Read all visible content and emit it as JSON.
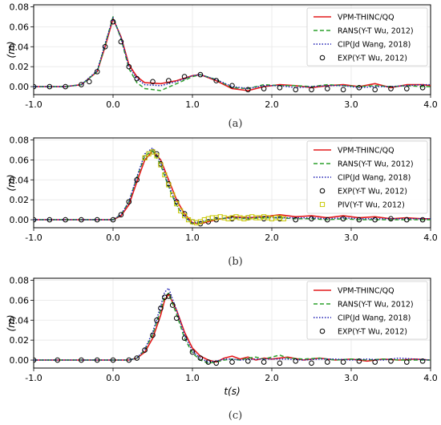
{
  "chart_data": [
    {
      "type": "line",
      "caption": "(a)",
      "ylabel": "(m)",
      "xlabel": "",
      "xlim": [
        -1.0,
        4.0
      ],
      "ylim": [
        -0.008,
        0.082
      ],
      "xticks": [
        "-1.0",
        "0.0",
        "1.0",
        "2.0",
        "3.0",
        "4.0"
      ],
      "yticks": [
        "0.00",
        "0.02",
        "0.04",
        "0.06",
        "0.08"
      ],
      "grid": true,
      "legend_position": "top-right",
      "series": [
        {
          "name": "VPM-THINC/QQ",
          "style": "solid",
          "color": "#e41a1c",
          "x": [
            -1.0,
            -0.6,
            -0.4,
            -0.2,
            -0.1,
            0.0,
            0.1,
            0.2,
            0.3,
            0.4,
            0.6,
            0.8,
            1.0,
            1.1,
            1.3,
            1.5,
            1.7,
            1.9,
            2.1,
            2.3,
            2.5,
            2.7,
            2.9,
            3.1,
            3.3,
            3.5,
            3.7,
            3.9,
            4.0
          ],
          "y": [
            0.0,
            0.0,
            0.002,
            0.015,
            0.04,
            0.068,
            0.05,
            0.022,
            0.01,
            0.004,
            0.003,
            0.006,
            0.011,
            0.012,
            0.006,
            -0.002,
            -0.004,
            0.0,
            0.002,
            0.001,
            -0.001,
            0.001,
            0.002,
            0.0,
            0.003,
            -0.001,
            0.002,
            0.002,
            0.001
          ]
        },
        {
          "name": "RANS(Y-T Wu, 2012)",
          "style": "dashed",
          "color": "#2ca02c",
          "x": [
            -1.0,
            -0.6,
            -0.4,
            -0.2,
            -0.1,
            0.0,
            0.1,
            0.2,
            0.3,
            0.4,
            0.6,
            0.8,
            1.0,
            1.1,
            1.3,
            1.5,
            1.7,
            1.9,
            2.1,
            2.3,
            2.5,
            2.7,
            2.9,
            3.1,
            3.3,
            3.5,
            3.7,
            3.9,
            4.0
          ],
          "y": [
            0.0,
            0.0,
            0.002,
            0.015,
            0.042,
            0.07,
            0.048,
            0.018,
            0.004,
            -0.002,
            -0.004,
            0.003,
            0.01,
            0.012,
            0.007,
            -0.001,
            -0.002,
            0.002,
            0.001,
            0.001,
            0.0,
            0.002,
            0.001,
            0.0,
            0.001,
            0.0,
            0.001,
            0.0,
            0.0
          ]
        },
        {
          "name": "CIP(Jd Wang, 2018)",
          "style": "dotted",
          "color": "#1f1fb4",
          "x": [
            -1.0,
            -0.6,
            -0.4,
            -0.2,
            -0.1,
            0.0,
            0.1,
            0.2,
            0.3,
            0.4,
            0.6,
            0.8,
            1.0,
            1.1,
            1.3,
            1.5,
            1.7,
            1.9,
            2.1,
            2.3,
            2.5,
            2.7,
            2.9,
            3.1,
            3.3,
            3.5,
            3.7,
            3.9,
            4.0
          ],
          "y": [
            0.0,
            0.0,
            0.002,
            0.016,
            0.043,
            0.069,
            0.049,
            0.02,
            0.008,
            0.002,
            0.001,
            0.005,
            0.011,
            0.012,
            0.007,
            0.0,
            -0.002,
            0.001,
            0.001,
            -0.001,
            0.0,
            0.001,
            0.001,
            -0.001,
            0.0,
            0.0,
            0.001,
            0.002,
            0.002
          ]
        },
        {
          "name": "EXP(Y-T Wu, 2012)",
          "style": "circle",
          "color": "#000000",
          "x": [
            -1.0,
            -0.8,
            -0.6,
            -0.4,
            -0.3,
            -0.2,
            -0.1,
            0.0,
            0.1,
            0.2,
            0.3,
            0.5,
            0.7,
            0.9,
            1.1,
            1.3,
            1.5,
            1.7,
            1.9,
            2.1,
            2.3,
            2.5,
            2.7,
            2.9,
            3.1,
            3.3,
            3.5,
            3.7,
            3.9
          ],
          "y": [
            0.0,
            0.0,
            0.0,
            0.002,
            0.005,
            0.015,
            0.04,
            0.065,
            0.045,
            0.02,
            0.008,
            0.005,
            0.006,
            0.01,
            0.012,
            0.006,
            0.001,
            -0.003,
            -0.002,
            -0.001,
            -0.003,
            -0.003,
            -0.002,
            -0.003,
            -0.001,
            -0.003,
            -0.002,
            -0.002,
            -0.001
          ]
        }
      ]
    },
    {
      "type": "line",
      "caption": "(b)",
      "ylabel": "(m)",
      "xlabel": "",
      "xlim": [
        -1.0,
        4.0
      ],
      "ylim": [
        -0.008,
        0.082
      ],
      "xticks": [
        "-1.0",
        "0.0",
        "1.0",
        "2.0",
        "3.0",
        "4.0"
      ],
      "yticks": [
        "0.00",
        "0.02",
        "0.04",
        "0.06",
        "0.08"
      ],
      "grid": true,
      "legend_position": "top-right",
      "series": [
        {
          "name": "VPM-THINC/QQ",
          "style": "solid",
          "color": "#e41a1c",
          "x": [
            -1.0,
            0.0,
            0.1,
            0.2,
            0.3,
            0.4,
            0.5,
            0.6,
            0.7,
            0.8,
            0.9,
            1.0,
            1.1,
            1.3,
            1.5,
            1.7,
            1.9,
            2.1,
            2.3,
            2.5,
            2.7,
            2.9,
            3.1,
            3.3,
            3.5,
            3.7,
            3.9,
            4.0
          ],
          "y": [
            0.0,
            0.0,
            0.004,
            0.015,
            0.038,
            0.06,
            0.069,
            0.06,
            0.04,
            0.02,
            0.006,
            -0.003,
            -0.004,
            0.0,
            0.003,
            0.002,
            0.003,
            0.005,
            0.003,
            0.004,
            0.002,
            0.004,
            0.002,
            0.003,
            0.001,
            0.002,
            0.001,
            0.001
          ]
        },
        {
          "name": "RANS(Y-T Wu, 2012)",
          "style": "dashed",
          "color": "#2ca02c",
          "x": [
            -1.0,
            0.0,
            0.1,
            0.2,
            0.3,
            0.4,
            0.5,
            0.6,
            0.7,
            0.8,
            0.9,
            1.0,
            1.1,
            1.3,
            1.5,
            1.7,
            1.9,
            2.1,
            2.3,
            2.5,
            2.7,
            2.9,
            3.1,
            3.3,
            3.5,
            3.7,
            3.9,
            4.0
          ],
          "y": [
            0.0,
            0.0,
            0.005,
            0.018,
            0.042,
            0.064,
            0.069,
            0.055,
            0.033,
            0.014,
            0.003,
            -0.004,
            -0.003,
            0.001,
            0.002,
            0.001,
            0.002,
            0.002,
            0.001,
            0.001,
            0.0,
            0.001,
            0.0,
            0.0,
            0.0,
            0.0,
            0.0,
            0.0
          ]
        },
        {
          "name": "CIP(Jd Wang, 2018)",
          "style": "dotted",
          "color": "#1f1fb4",
          "x": [
            -1.0,
            0.0,
            0.1,
            0.2,
            0.3,
            0.4,
            0.5,
            0.6,
            0.7,
            0.8,
            0.9,
            1.0,
            1.1,
            1.3,
            1.5,
            1.7,
            1.9,
            2.1,
            2.3,
            2.5,
            2.7,
            2.9,
            3.1,
            3.3,
            3.5,
            3.7,
            3.9,
            4.0
          ],
          "y": [
            0.0,
            0.0,
            0.005,
            0.018,
            0.043,
            0.066,
            0.072,
            0.058,
            0.035,
            0.015,
            0.003,
            -0.003,
            -0.002,
            0.001,
            0.002,
            0.002,
            0.003,
            0.002,
            0.002,
            0.002,
            0.001,
            0.002,
            0.001,
            0.001,
            0.001,
            0.001,
            0.001,
            0.001
          ]
        },
        {
          "name": "EXP(Y-T Wu, 2012)",
          "style": "circle",
          "color": "#000000",
          "x": [
            -1.0,
            -0.8,
            -0.6,
            -0.4,
            -0.2,
            0.0,
            0.1,
            0.2,
            0.3,
            0.4,
            0.5,
            0.55,
            0.6,
            0.7,
            0.8,
            0.9,
            1.0,
            1.1,
            1.2,
            1.3,
            1.5,
            1.7,
            1.9,
            2.1,
            2.3,
            2.5,
            2.7,
            2.9,
            3.1,
            3.3,
            3.5,
            3.7,
            3.9
          ],
          "y": [
            0.0,
            0.0,
            0.0,
            0.0,
            0.0,
            0.0,
            0.005,
            0.018,
            0.04,
            0.062,
            0.068,
            0.066,
            0.056,
            0.036,
            0.018,
            0.006,
            -0.002,
            -0.004,
            -0.002,
            0.0,
            0.001,
            0.002,
            0.001,
            0.001,
            0.0,
            0.001,
            0.0,
            0.001,
            0.0,
            0.0,
            0.001,
            0.0,
            0.0
          ]
        },
        {
          "name": "PIV(Y-T Wu, 2012)",
          "style": "square",
          "color": "#c8c800",
          "x": [
            0.4,
            0.45,
            0.5,
            0.55,
            0.6,
            0.65,
            0.7,
            0.75,
            0.8,
            0.85,
            0.9,
            0.95,
            1.0,
            1.05,
            1.1,
            1.15,
            1.2,
            1.25,
            1.3,
            1.35,
            1.4,
            1.45,
            1.5,
            1.55,
            1.6,
            1.65,
            1.7,
            1.75,
            1.8,
            1.85,
            1.9,
            1.95,
            2.0,
            2.05,
            2.1,
            2.15
          ],
          "y": [
            0.062,
            0.066,
            0.068,
            0.064,
            0.055,
            0.045,
            0.035,
            0.025,
            0.016,
            0.009,
            0.004,
            0.0,
            -0.002,
            -0.003,
            -0.002,
            0.0,
            0.001,
            0.002,
            0.002,
            0.003,
            0.002,
            0.001,
            0.002,
            0.003,
            0.002,
            0.001,
            0.002,
            0.003,
            0.002,
            0.002,
            0.003,
            0.002,
            0.001,
            0.002,
            0.002,
            0.001
          ]
        }
      ]
    },
    {
      "type": "line",
      "caption": "(c)",
      "ylabel": "(m)",
      "xlabel": "t(s)",
      "xlim": [
        -1.0,
        4.0
      ],
      "ylim": [
        -0.008,
        0.082
      ],
      "xticks": [
        "-1.0",
        "0.0",
        "1.0",
        "2.0",
        "3.0",
        "4.0"
      ],
      "yticks": [
        "0.00",
        "0.02",
        "0.04",
        "0.06",
        "0.08"
      ],
      "grid": true,
      "legend_position": "top-right",
      "series": [
        {
          "name": "VPM-THINC/QQ",
          "style": "solid",
          "color": "#e41a1c",
          "x": [
            -1.0,
            0.0,
            0.2,
            0.3,
            0.4,
            0.5,
            0.6,
            0.65,
            0.7,
            0.8,
            0.9,
            1.0,
            1.1,
            1.2,
            1.3,
            1.4,
            1.5,
            1.6,
            1.7,
            1.8,
            1.9,
            2.0,
            2.2,
            2.4,
            2.6,
            2.8,
            3.0,
            3.2,
            3.4,
            3.6,
            3.8,
            4.0
          ],
          "y": [
            0.0,
            0.0,
            0.0,
            0.002,
            0.008,
            0.022,
            0.045,
            0.06,
            0.066,
            0.05,
            0.028,
            0.012,
            0.004,
            0.0,
            -0.002,
            0.002,
            0.004,
            0.001,
            0.003,
            0.0,
            0.002,
            0.001,
            0.003,
            0.0,
            0.002,
            0.0,
            0.001,
            -0.001,
            0.001,
            0.0,
            0.001,
            0.0
          ]
        },
        {
          "name": "RANS(Y-T Wu, 2012)",
          "style": "dashed",
          "color": "#2ca02c",
          "x": [
            -1.0,
            0.0,
            0.2,
            0.3,
            0.4,
            0.5,
            0.6,
            0.65,
            0.7,
            0.8,
            0.9,
            1.0,
            1.1,
            1.2,
            1.3,
            1.4,
            1.5,
            1.6,
            1.7,
            1.8,
            1.9,
            2.0,
            2.1,
            2.2,
            2.4,
            2.6,
            2.8,
            3.0,
            3.2,
            3.4,
            3.6,
            3.8,
            4.0
          ],
          "y": [
            0.0,
            0.0,
            0.0,
            0.002,
            0.01,
            0.026,
            0.05,
            0.063,
            0.067,
            0.046,
            0.022,
            0.007,
            0.0,
            -0.003,
            -0.002,
            0.0,
            0.001,
            0.0,
            0.002,
            0.003,
            0.001,
            0.003,
            0.005,
            0.002,
            0.001,
            0.002,
            0.0,
            0.001,
            0.0,
            0.001,
            0.0,
            0.0,
            0.0
          ]
        },
        {
          "name": "CIP(Jd Wang, 2018)",
          "style": "dotted",
          "color": "#1f1fb4",
          "x": [
            -1.0,
            0.0,
            0.2,
            0.3,
            0.4,
            0.5,
            0.6,
            0.65,
            0.7,
            0.8,
            0.9,
            1.0,
            1.1,
            1.2,
            1.3,
            1.4,
            1.5,
            1.6,
            1.8,
            2.0,
            2.2,
            2.4,
            2.6,
            2.8,
            3.0,
            3.2,
            3.4,
            3.6,
            3.8,
            4.0
          ],
          "y": [
            0.0,
            0.0,
            0.0,
            0.002,
            0.011,
            0.028,
            0.054,
            0.068,
            0.072,
            0.05,
            0.025,
            0.009,
            0.002,
            -0.002,
            -0.001,
            0.001,
            0.001,
            0.0,
            0.001,
            0.001,
            0.001,
            0.0,
            0.001,
            0.001,
            0.0,
            0.001,
            0.0,
            0.002,
            0.001,
            0.0
          ]
        },
        {
          "name": "EXP(Y-T Wu, 2012)",
          "style": "circle",
          "color": "#000000",
          "x": [
            -1.0,
            -0.7,
            -0.4,
            -0.2,
            0.0,
            0.2,
            0.3,
            0.4,
            0.5,
            0.55,
            0.6,
            0.65,
            0.7,
            0.75,
            0.8,
            0.9,
            1.0,
            1.1,
            1.2,
            1.3,
            1.5,
            1.7,
            1.9,
            2.1,
            2.3,
            2.5,
            2.7,
            2.9,
            3.1,
            3.3,
            3.5,
            3.7,
            3.9
          ],
          "y": [
            0.0,
            0.0,
            0.0,
            0.0,
            0.0,
            0.0,
            0.002,
            0.01,
            0.025,
            0.04,
            0.052,
            0.063,
            0.064,
            0.055,
            0.042,
            0.022,
            0.008,
            0.002,
            -0.002,
            -0.003,
            -0.002,
            -0.001,
            -0.002,
            -0.003,
            -0.001,
            -0.003,
            -0.002,
            -0.002,
            -0.001,
            -0.002,
            -0.001,
            -0.002,
            -0.001
          ]
        }
      ]
    }
  ]
}
